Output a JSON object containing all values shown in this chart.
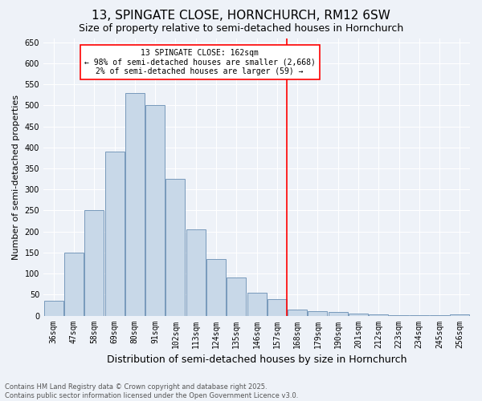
{
  "title": "13, SPINGATE CLOSE, HORNCHURCH, RM12 6SW",
  "subtitle": "Size of property relative to semi-detached houses in Hornchurch",
  "xlabel": "Distribution of semi-detached houses by size in Hornchurch",
  "ylabel": "Number of semi-detached properties",
  "bins": [
    "36sqm",
    "47sqm",
    "58sqm",
    "69sqm",
    "80sqm",
    "91sqm",
    "102sqm",
    "113sqm",
    "124sqm",
    "135sqm",
    "146sqm",
    "157sqm",
    "168sqm",
    "179sqm",
    "190sqm",
    "201sqm",
    "212sqm",
    "223sqm",
    "234sqm",
    "245sqm",
    "256sqm"
  ],
  "bar_heights": [
    35,
    150,
    250,
    390,
    530,
    500,
    325,
    205,
    135,
    90,
    55,
    40,
    15,
    10,
    8,
    5,
    3,
    2,
    1,
    1,
    3
  ],
  "bar_color": "#c8d8e8",
  "bar_edge_color": "#7799bb",
  "vline_color": "red",
  "annotation_text": "13 SPINGATE CLOSE: 162sqm\n← 98% of semi-detached houses are smaller (2,668)\n2% of semi-detached houses are larger (59) →",
  "annotation_box_color": "white",
  "annotation_box_edge": "red",
  "ylim": [
    0,
    660
  ],
  "yticks": [
    0,
    50,
    100,
    150,
    200,
    250,
    300,
    350,
    400,
    450,
    500,
    550,
    600,
    650
  ],
  "background_color": "#eef2f8",
  "grid_color": "#ffffff",
  "footnote": "Contains HM Land Registry data © Crown copyright and database right 2025.\nContains public sector information licensed under the Open Government Licence v3.0.",
  "title_fontsize": 11,
  "subtitle_fontsize": 9,
  "xlabel_fontsize": 9,
  "ylabel_fontsize": 8,
  "tick_fontsize": 7,
  "annotation_fontsize": 7,
  "footnote_fontsize": 6
}
